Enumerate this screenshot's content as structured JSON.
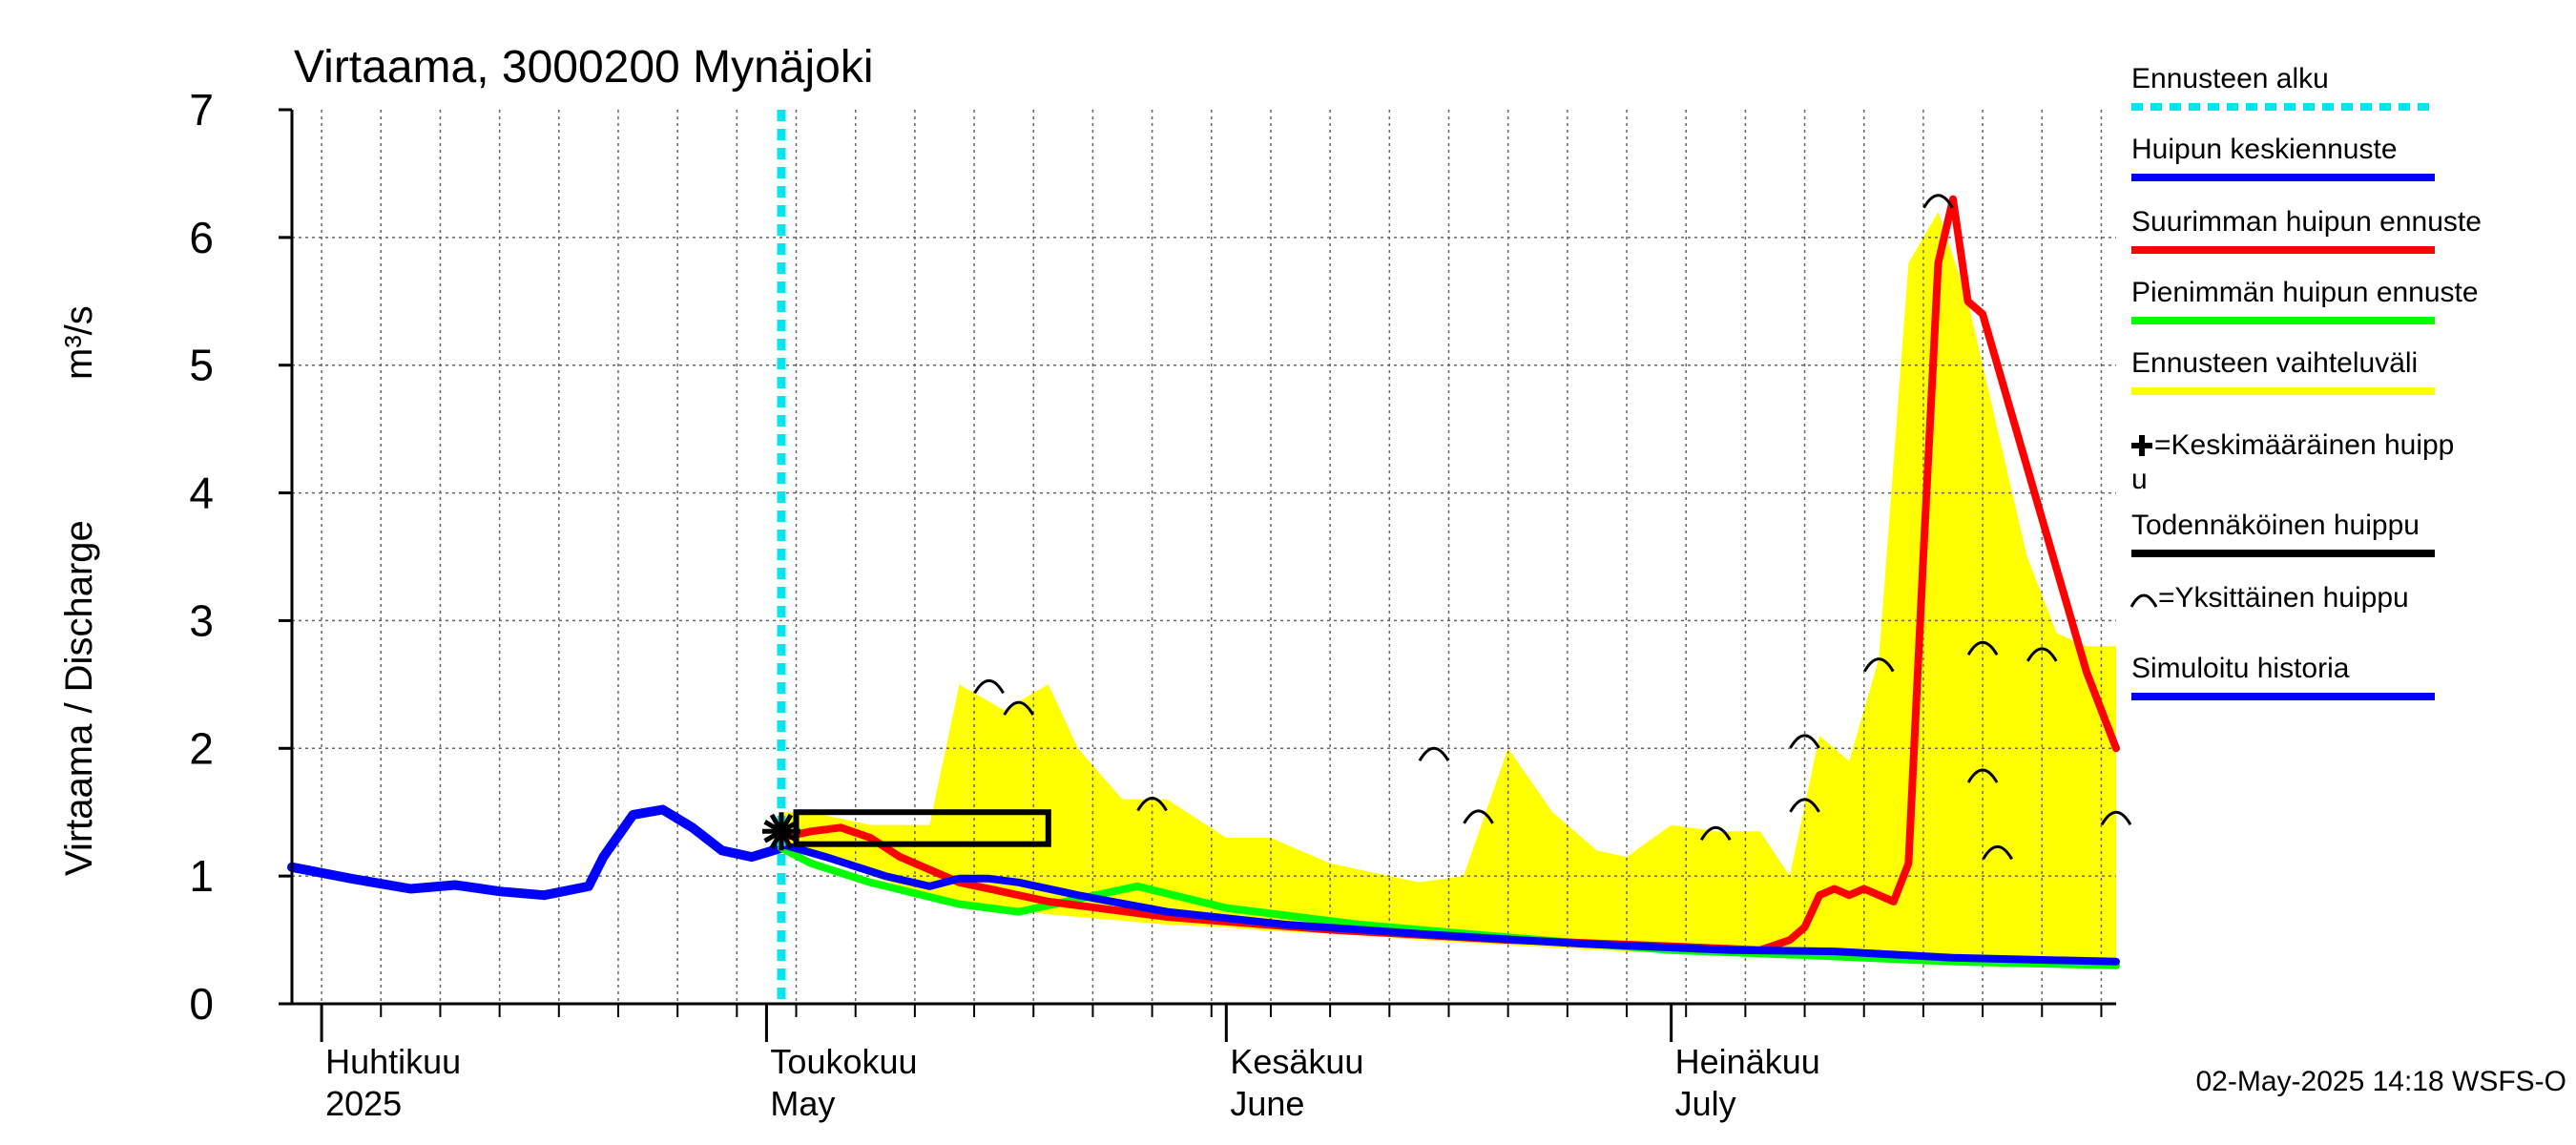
{
  "chart_data": {
    "type": "area",
    "title": "Virtaama, 3000200 Mynäjoki",
    "ylabel": "Virtaama / Discharge",
    "yunit": "m³/s",
    "ylim": [
      0,
      7
    ],
    "yticks": [
      "0",
      "1",
      "2",
      "3",
      "4",
      "5",
      "6",
      "7"
    ],
    "xlim": [
      "2025-03-30",
      "2025-07-31"
    ],
    "month_labels": [
      {
        "date": "2025-04-01",
        "line1": "Huhtikuu",
        "line2": "2025"
      },
      {
        "date": "2025-05-01",
        "line1": "Toukokuu",
        "line2": "May"
      },
      {
        "date": "2025-06-01",
        "line1": "Kesäkuu",
        "line2": "June"
      },
      {
        "date": "2025-07-01",
        "line1": "Heinäkuu",
        "line2": "July"
      }
    ],
    "grid": true,
    "forecast_start": "2025-05-02",
    "series": [
      {
        "name": "Ennusteen vaihteluväli",
        "kind": "band",
        "color": "#ffff00",
        "x": [
          "2025-05-02",
          "2025-05-04",
          "2025-05-08",
          "2025-05-12",
          "2025-05-14",
          "2025-05-17",
          "2025-05-20",
          "2025-05-22",
          "2025-05-25",
          "2025-05-28",
          "2025-06-01",
          "2025-06-04",
          "2025-06-08",
          "2025-06-12",
          "2025-06-14",
          "2025-06-17",
          "2025-06-20",
          "2025-06-23",
          "2025-06-26",
          "2025-06-28",
          "2025-07-01",
          "2025-07-04",
          "2025-07-07",
          "2025-07-09",
          "2025-07-11",
          "2025-07-13",
          "2025-07-15",
          "2025-07-17",
          "2025-07-19",
          "2025-07-21",
          "2025-07-23",
          "2025-07-25",
          "2025-07-27",
          "2025-07-29",
          "2025-07-31"
        ],
        "upper": [
          1.5,
          1.5,
          1.4,
          1.4,
          2.5,
          2.3,
          2.5,
          2.0,
          1.6,
          1.6,
          1.3,
          1.3,
          1.1,
          1.0,
          0.95,
          1.0,
          2.0,
          1.5,
          1.2,
          1.15,
          1.4,
          1.35,
          1.35,
          1.0,
          2.1,
          1.9,
          2.7,
          5.8,
          6.2,
          5.5,
          4.5,
          3.5,
          2.9,
          2.8,
          2.8
        ],
        "lower": [
          1.2,
          1.2,
          1.0,
          0.85,
          0.8,
          0.75,
          0.7,
          0.68,
          0.65,
          0.62,
          0.6,
          0.57,
          0.55,
          0.52,
          0.5,
          0.48,
          0.46,
          0.44,
          0.42,
          0.41,
          0.4,
          0.39,
          0.38,
          0.37,
          0.36,
          0.35,
          0.34,
          0.33,
          0.32,
          0.31,
          0.3,
          0.3,
          0.29,
          0.29,
          0.28
        ]
      },
      {
        "name": "Simuloitu historia",
        "kind": "line",
        "color": "#0000ff",
        "x": [
          "2025-03-30",
          "2025-04-03",
          "2025-04-07",
          "2025-04-10",
          "2025-04-13",
          "2025-04-16",
          "2025-04-19",
          "2025-04-20",
          "2025-04-22",
          "2025-04-24",
          "2025-04-26",
          "2025-04-28",
          "2025-04-30",
          "2025-05-02"
        ],
        "y": [
          1.07,
          0.98,
          0.9,
          0.93,
          0.88,
          0.85,
          0.92,
          1.15,
          1.48,
          1.52,
          1.38,
          1.2,
          1.15,
          1.22
        ]
      },
      {
        "name": "Suurimman huipun ennuste",
        "kind": "line",
        "color": "#ff0000",
        "x": [
          "2025-05-02",
          "2025-05-04",
          "2025-05-06",
          "2025-05-08",
          "2025-05-10",
          "2025-05-14",
          "2025-05-20",
          "2025-05-28",
          "2025-06-08",
          "2025-06-20",
          "2025-07-01",
          "2025-07-07",
          "2025-07-09",
          "2025-07-10",
          "2025-07-11",
          "2025-07-12",
          "2025-07-13",
          "2025-07-14",
          "2025-07-15",
          "2025-07-16",
          "2025-07-17",
          "2025-07-18",
          "2025-07-19",
          "2025-07-20",
          "2025-07-21",
          "2025-07-22",
          "2025-07-23",
          "2025-07-25",
          "2025-07-27",
          "2025-07-29",
          "2025-07-31"
        ],
        "y": [
          1.3,
          1.35,
          1.38,
          1.3,
          1.15,
          0.95,
          0.8,
          0.68,
          0.58,
          0.5,
          0.45,
          0.42,
          0.5,
          0.6,
          0.85,
          0.9,
          0.85,
          0.9,
          0.85,
          0.8,
          1.1,
          3.5,
          5.8,
          6.3,
          5.5,
          5.4,
          5.0,
          4.2,
          3.4,
          2.6,
          2.0
        ]
      },
      {
        "name": "Pienimmän huipun ennuste",
        "kind": "line",
        "color": "#00ff00",
        "x": [
          "2025-05-02",
          "2025-05-04",
          "2025-05-08",
          "2025-05-14",
          "2025-05-18",
          "2025-05-22",
          "2025-05-26",
          "2025-06-01",
          "2025-06-10",
          "2025-06-20",
          "2025-07-01",
          "2025-07-10",
          "2025-07-20",
          "2025-07-31"
        ],
        "y": [
          1.22,
          1.1,
          0.95,
          0.78,
          0.72,
          0.82,
          0.92,
          0.75,
          0.62,
          0.52,
          0.42,
          0.38,
          0.33,
          0.3
        ]
      },
      {
        "name": "Huipun keskiennuste",
        "kind": "line",
        "color": "#0000ff",
        "x": [
          "2025-05-02",
          "2025-05-05",
          "2025-05-09",
          "2025-05-12",
          "2025-05-14",
          "2025-05-16",
          "2025-05-18",
          "2025-05-22",
          "2025-05-28",
          "2025-06-05",
          "2025-06-15",
          "2025-06-25",
          "2025-07-05",
          "2025-07-12",
          "2025-07-20",
          "2025-07-31"
        ],
        "y": [
          1.25,
          1.15,
          1.0,
          0.92,
          0.98,
          0.98,
          0.95,
          0.85,
          0.72,
          0.62,
          0.54,
          0.47,
          0.42,
          0.41,
          0.36,
          0.33
        ]
      }
    ],
    "probable_peak_box": {
      "name": "Todennäköinen huippu",
      "x": [
        "2025-05-03",
        "2025-05-20"
      ],
      "y": [
        1.25,
        1.5
      ],
      "color": "#000000"
    },
    "mean_peak_marker": {
      "name": "Keskimääräinen huippu",
      "x": "2025-05-02",
      "y": 1.35
    },
    "single_peaks": [
      {
        "x": "2025-05-16",
        "y": 2.5
      },
      {
        "x": "2025-05-18",
        "y": 2.33
      },
      {
        "x": "2025-05-27",
        "y": 1.58
      },
      {
        "x": "2025-06-15",
        "y": 1.97
      },
      {
        "x": "2025-06-18",
        "y": 1.48
      },
      {
        "x": "2025-07-04",
        "y": 1.35
      },
      {
        "x": "2025-07-10",
        "y": 2.07
      },
      {
        "x": "2025-07-10",
        "y": 1.57
      },
      {
        "x": "2025-07-15",
        "y": 2.67
      },
      {
        "x": "2025-07-19",
        "y": 6.3
      },
      {
        "x": "2025-07-22",
        "y": 2.8
      },
      {
        "x": "2025-07-22",
        "y": 1.8
      },
      {
        "x": "2025-07-23",
        "y": 1.2
      },
      {
        "x": "2025-07-26",
        "y": 2.75
      },
      {
        "x": "2025-07-31",
        "y": 1.47
      }
    ],
    "legend": [
      {
        "label": "Ennusteen alku",
        "color": "#00e5ee",
        "style": "dotted"
      },
      {
        "label": "Huipun keskiennuste",
        "color": "#0000ff",
        "style": "line"
      },
      {
        "label": "Suurimman huipun ennuste",
        "color": "#ff0000",
        "style": "line"
      },
      {
        "label": "Pienimmän huipun ennuste",
        "color": "#00ff00",
        "style": "line"
      },
      {
        "label": "Ennusteen vaihteluväli",
        "color": "#ffff00",
        "style": "line"
      },
      {
        "label": "=Keskimääräinen huipp",
        "label2": "u",
        "color": "#000000",
        "style": "plus"
      },
      {
        "label": "Todennäköinen huippu",
        "color": "#000000",
        "style": "line"
      },
      {
        "label": "=Yksittäinen huippu",
        "color": "#000000",
        "style": "arc"
      },
      {
        "label": "Simuloitu historia",
        "color": "#0000ff",
        "style": "line"
      }
    ],
    "footer": "02-May-2025 14:18 WSFS-O"
  }
}
